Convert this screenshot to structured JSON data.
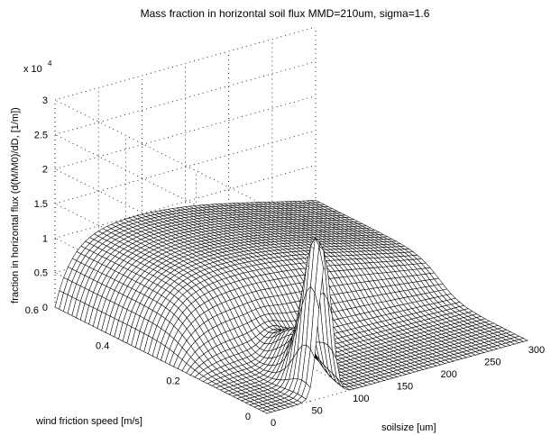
{
  "chart_data": {
    "type": "surface",
    "title": "Mass fraction in horizontal soil flux MMD=210um, sigma=1.6",
    "xlabel": "soilsize [um]",
    "ylabel": "wind friction speed [m/s]",
    "zlabel": "fraction in horizontal flux (d(M/M0)/dD, [1/m])",
    "z_multiplier": "x 10",
    "z_multiplier_exp": "4",
    "xlim": [
      0,
      300
    ],
    "ylim": [
      0,
      0.6
    ],
    "zlim": [
      0,
      3
    ],
    "x_ticks": [
      "0",
      "50",
      "100",
      "150",
      "200",
      "250",
      "300"
    ],
    "y_ticks": [
      "0",
      "0.2",
      "0.4",
      "0.6"
    ],
    "z_ticks": [
      "0",
      "0.5",
      "1",
      "1.5",
      "2",
      "2.5",
      "3"
    ],
    "grid": "dotted",
    "surface_color": "#000000",
    "surface_fill": "#ffffff",
    "features": {
      "plateau_height": 1.0,
      "peak_height": 2.2,
      "peak_soilsize_um": 67,
      "peak_wind_speed_ms": 0.02,
      "plateau_onset_wind_speed_ms": 0.25
    }
  }
}
